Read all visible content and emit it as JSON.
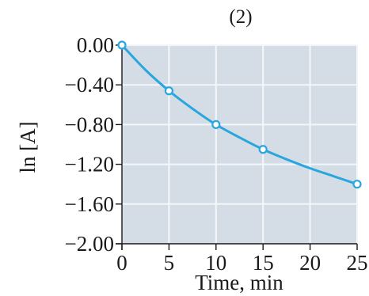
{
  "chart_data": {
    "type": "line",
    "title": "(2)",
    "xlabel": "Time, min",
    "ylabel": "ln [A]",
    "xlim": [
      0,
      25
    ],
    "ylim": [
      -2.0,
      0.0
    ],
    "x_ticks": [
      {
        "value": 0,
        "label": "0"
      },
      {
        "value": 5,
        "label": "5"
      },
      {
        "value": 10,
        "label": "10"
      },
      {
        "value": 15,
        "label": "15"
      },
      {
        "value": 20,
        "label": "20"
      },
      {
        "value": 25,
        "label": "25"
      }
    ],
    "y_ticks": [
      {
        "value": 0.0,
        "label": "0.00"
      },
      {
        "value": -0.4,
        "label": "−0.40"
      },
      {
        "value": -0.8,
        "label": "−0.80"
      },
      {
        "value": -1.2,
        "label": "−1.20"
      },
      {
        "value": -1.6,
        "label": "−1.60"
      },
      {
        "value": -2.0,
        "label": "−2.00"
      }
    ],
    "grid": true,
    "series": [
      {
        "x": [
          0,
          5,
          10,
          15,
          25
        ],
        "y": [
          0.0,
          -0.46,
          -0.8,
          -1.05,
          -1.4
        ],
        "color": "#29a6de"
      }
    ],
    "curve": {
      "x": [
        0,
        2.5,
        5,
        7.5,
        10,
        12.5,
        15,
        17.5,
        20,
        22.5,
        25
      ],
      "y": [
        0.0,
        -0.25,
        -0.46,
        -0.64,
        -0.8,
        -0.93,
        -1.05,
        -1.15,
        -1.24,
        -1.32,
        -1.4
      ]
    },
    "colors": {
      "plot_background": "#d4dde6",
      "gridline": "#f4f7fa",
      "line": "#29a6de",
      "marker_fill": "#ffffff"
    }
  }
}
